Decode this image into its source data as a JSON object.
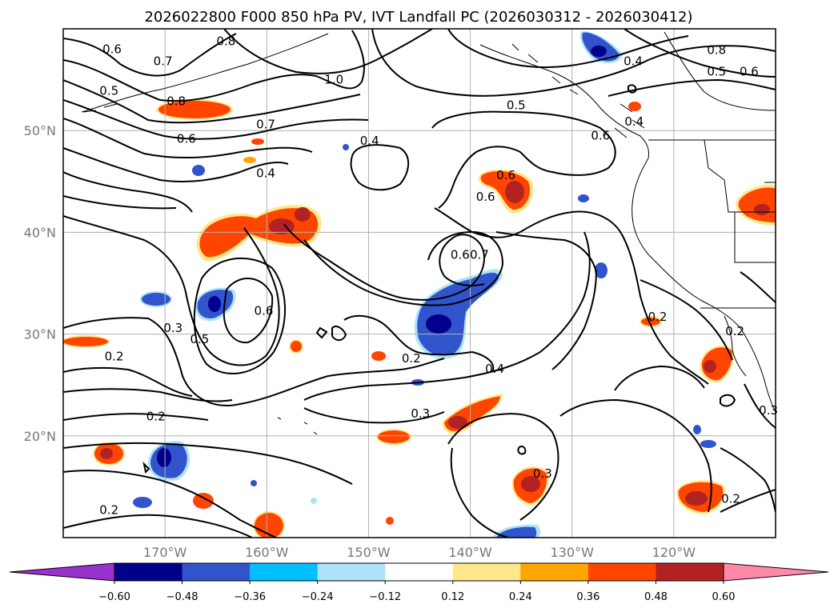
{
  "chart_data": {
    "type": "contour-map",
    "title": "2026022800 F000 850 hPa PV, IVT Landfall PC (2026030312 - 2026030412)",
    "lat_ticks": [
      "50°N",
      "40°N",
      "30°N",
      "20°N"
    ],
    "lat_values": [
      50,
      40,
      30,
      20
    ],
    "lon_ticks": [
      "170°W",
      "160°W",
      "150°W",
      "140°W",
      "130°W",
      "120°W"
    ],
    "lon_values": [
      -170,
      -160,
      -150,
      -140,
      -130,
      -120
    ],
    "xlim": [
      -180,
      -110
    ],
    "ylim": [
      10,
      60
    ],
    "grid": true,
    "colorbar": {
      "tick_labels": [
        "−0.60",
        "−0.48",
        "−0.36",
        "−0.24",
        "−0.12",
        "0.12",
        "0.24",
        "0.36",
        "0.48",
        "0.60"
      ],
      "levels": [
        -0.6,
        -0.48,
        -0.36,
        -0.24,
        -0.12,
        0.12,
        0.24,
        0.36,
        0.48,
        0.6
      ],
      "colors": [
        "#9932CC",
        "#00008B",
        "#3154CC",
        "#00BFFF",
        "#AEE2FA",
        "#FFFFFF",
        "#FFE78C",
        "#FFA500",
        "#FF4500",
        "#B22222",
        "#FF88AA"
      ],
      "extend": "both"
    },
    "contour_labels": [
      {
        "text": "0.6",
        "lon": -175.2,
        "lat": 58.0
      },
      {
        "text": "0.7",
        "lon": -170.2,
        "lat": 56.8
      },
      {
        "text": "0.8",
        "lon": -164.0,
        "lat": 58.8
      },
      {
        "text": "1.0",
        "lon": -153.4,
        "lat": 55.0
      },
      {
        "text": "0.5",
        "lon": -175.5,
        "lat": 53.9
      },
      {
        "text": "0.8",
        "lon": -168.9,
        "lat": 52.9
      },
      {
        "text": "0.7",
        "lon": -160.1,
        "lat": 50.6
      },
      {
        "text": "0.6",
        "lon": -167.9,
        "lat": 49.2
      },
      {
        "text": "0.4",
        "lon": -160.1,
        "lat": 45.8
      },
      {
        "text": "0.4",
        "lon": -149.9,
        "lat": 49.0
      },
      {
        "text": "0.5",
        "lon": -135.5,
        "lat": 52.5
      },
      {
        "text": "0.6",
        "lon": -138.5,
        "lat": 43.5
      },
      {
        "text": "0.6",
        "lon": -136.5,
        "lat": 45.6
      },
      {
        "text": "0.4",
        "lon": -124.0,
        "lat": 56.8
      },
      {
        "text": "0.8",
        "lon": -115.8,
        "lat": 57.9
      },
      {
        "text": "0.5",
        "lon": -115.8,
        "lat": 55.8
      },
      {
        "text": "0.6",
        "lon": -112.6,
        "lat": 55.8
      },
      {
        "text": "0.4",
        "lon": -123.9,
        "lat": 50.9
      },
      {
        "text": "0.6",
        "lon": -127.2,
        "lat": 49.5
      },
      {
        "text": "0.6",
        "lon": -141.0,
        "lat": 37.8
      },
      {
        "text": "0.7",
        "lon": -139.1,
        "lat": 37.8
      },
      {
        "text": "0.5",
        "lon": -166.6,
        "lat": 29.5
      },
      {
        "text": "0.6",
        "lon": -160.3,
        "lat": 32.3
      },
      {
        "text": "0.3",
        "lon": -169.2,
        "lat": 30.6
      },
      {
        "text": "0.2",
        "lon": -175.0,
        "lat": 27.8
      },
      {
        "text": "0.2",
        "lon": -145.8,
        "lat": 27.6
      },
      {
        "text": "0.4",
        "lon": -137.6,
        "lat": 26.6
      },
      {
        "text": "0.3",
        "lon": -144.9,
        "lat": 22.2
      },
      {
        "text": "0.2",
        "lon": -170.9,
        "lat": 21.9
      },
      {
        "text": "0.3",
        "lon": -132.9,
        "lat": 16.3
      },
      {
        "text": "0.2",
        "lon": -175.5,
        "lat": 12.7
      },
      {
        "text": "0.2",
        "lon": -121.6,
        "lat": 31.7
      },
      {
        "text": "0.2",
        "lon": -114.0,
        "lat": 30.3
      },
      {
        "text": "0.3",
        "lon": -110.7,
        "lat": 22.5
      },
      {
        "text": "0.2",
        "lon": -114.4,
        "lat": 13.8
      }
    ]
  }
}
